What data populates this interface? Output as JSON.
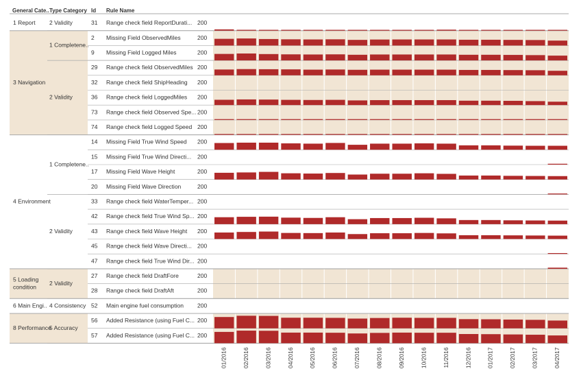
{
  "headers": {
    "general_category": "General Cate..",
    "type_category": "Type Category",
    "id": "Id",
    "rule_name": "Rule Name"
  },
  "colors": {
    "bar": "#b02a2a",
    "band": "#f1e5d4",
    "grid": "#ffffff",
    "divider": "#a8a8a8",
    "text": "#333333"
  },
  "chart_data": {
    "type": "bar",
    "title": "",
    "categories": [
      "01/2016",
      "02/2016",
      "03/2016",
      "04/2016",
      "05/2016",
      "06/2016",
      "07/2016",
      "08/2016",
      "09/2016",
      "10/2016",
      "11/2016",
      "12/2016",
      "01/2017",
      "02/2017",
      "03/2017",
      "04/2017"
    ],
    "ylim": [
      0,
      200
    ],
    "ylabel_per_row": "200",
    "groups": [
      {
        "general": "1 Report",
        "types": [
          {
            "type": "2 Validity",
            "rules": [
              {
                "id": "31",
                "name": "Range check field ReportDurati...",
                "values": [
                  18,
                  12,
                  10,
                  12,
                  10,
                  10,
                  8,
                  8,
                  10,
                  10,
                  14,
                  10,
                  10,
                  8,
                  10,
                  8
                ]
              }
            ]
          }
        ]
      },
      {
        "general": "3 Navigation",
        "types": [
          {
            "type": "1 Completene..",
            "rules": [
              {
                "id": "2",
                "name": "Missing Field ObservedMiles",
                "values": [
                  95,
                  100,
                  92,
                  88,
                  86,
                  88,
                  80,
                  85,
                  86,
                  86,
                  86,
                  82,
                  82,
                  80,
                  78,
                  70
                ]
              },
              {
                "id": "9",
                "name": "Missing Field Logged Miles",
                "values": [
                  92,
                  98,
                  90,
                  86,
                  84,
                  86,
                  80,
                  84,
                  84,
                  84,
                  84,
                  80,
                  80,
                  78,
                  75,
                  68
                ]
              }
            ]
          },
          {
            "type": "2 Validity",
            "rules": [
              {
                "id": "29",
                "name": "Range check field ObservedMiles",
                "values": [
                  82,
                  88,
                  86,
                  84,
                  80,
                  82,
                  78,
                  80,
                  80,
                  80,
                  80,
                  76,
                  76,
                  74,
                  72,
                  64
                ]
              },
              {
                "id": "32",
                "name": "Range check field ShipHeading",
                "values": [
                  0,
                  0,
                  0,
                  0,
                  0,
                  0,
                  0,
                  0,
                  0,
                  0,
                  0,
                  0,
                  0,
                  0,
                  0,
                  0
                ]
              },
              {
                "id": "36",
                "name": "Range check field LoggedMiles",
                "values": [
                  75,
                  80,
                  78,
                  74,
                  72,
                  74,
                  66,
                  70,
                  70,
                  70,
                  70,
                  62,
                  62,
                  60,
                  56,
                  48
                ]
              },
              {
                "id": "73",
                "name": "Range check field Observed Spe...",
                "values": [
                  4,
                  3,
                  3,
                  3,
                  3,
                  3,
                  3,
                  3,
                  3,
                  3,
                  3,
                  3,
                  3,
                  3,
                  3,
                  3
                ]
              },
              {
                "id": "74",
                "name": "Range check field Logged Speed",
                "values": [
                  4,
                  3,
                  3,
                  3,
                  3,
                  3,
                  10,
                  3,
                  3,
                  3,
                  3,
                  3,
                  3,
                  3,
                  3,
                  3
                ]
              }
            ]
          }
        ]
      },
      {
        "general": "4 Environment",
        "types": [
          {
            "type": "1 Completene..",
            "rules": [
              {
                "id": "14",
                "name": "Missing Field True Wind Speed",
                "values": [
                  95,
                  100,
                  100,
                  90,
                  86,
                  96,
                  70,
                  86,
                  86,
                  90,
                  86,
                  62,
                  62,
                  58,
                  56,
                  56
                ]
              },
              {
                "id": "15",
                "name": "Missing Field True Wind Directi...",
                "values": [
                  0,
                  0,
                  0,
                  0,
                  0,
                  0,
                  0,
                  0,
                  0,
                  0,
                  0,
                  0,
                  0,
                  0,
                  0,
                  12
                ]
              },
              {
                "id": "17",
                "name": "Missing Field Wave Height",
                "values": [
                  95,
                  100,
                  108,
                  88,
                  84,
                  92,
                  70,
                  82,
                  82,
                  88,
                  80,
                  56,
                  56,
                  52,
                  50,
                  48
                ]
              },
              {
                "id": "20",
                "name": "Missing Field Wave Direction",
                "values": [
                  0,
                  0,
                  0,
                  0,
                  0,
                  0,
                  0,
                  0,
                  0,
                  0,
                  0,
                  0,
                  0,
                  0,
                  0,
                  12
                ]
              }
            ]
          },
          {
            "type": "2 Validity",
            "rules": [
              {
                "id": "33",
                "name": "Range check field WaterTemper...",
                "values": [
                  0,
                  0,
                  0,
                  0,
                  0,
                  0,
                  0,
                  0,
                  0,
                  0,
                  0,
                  0,
                  0,
                  0,
                  0,
                  0
                ]
              },
              {
                "id": "42",
                "name": "Range check field True Wind Sp...",
                "values": [
                  98,
                  104,
                  106,
                  92,
                  88,
                  98,
                  70,
                  86,
                  86,
                  90,
                  82,
                  58,
                  58,
                  54,
                  52,
                  50
                ]
              },
              {
                "id": "43",
                "name": "Range check field Wave Height",
                "values": [
                  92,
                  100,
                  106,
                  86,
                  84,
                  92,
                  70,
                  82,
                  82,
                  86,
                  80,
                  54,
                  54,
                  52,
                  50,
                  48
                ]
              },
              {
                "id": "45",
                "name": "Range check field Wave Directi...",
                "values": [
                  0,
                  0,
                  0,
                  0,
                  0,
                  0,
                  0,
                  0,
                  0,
                  0,
                  0,
                  0,
                  0,
                  0,
                  0,
                  10
                ]
              },
              {
                "id": "47",
                "name": "Range check field True Wind Dir...",
                "values": [
                  0,
                  0,
                  0,
                  0,
                  0,
                  0,
                  0,
                  0,
                  0,
                  0,
                  0,
                  0,
                  0,
                  0,
                  0,
                  16
                ]
              }
            ]
          }
        ]
      },
      {
        "general": "5 Loading condition",
        "types": [
          {
            "type": "2 Validity",
            "rules": [
              {
                "id": "27",
                "name": "Range check field DraftFore",
                "values": [
                  0,
                  0,
                  0,
                  0,
                  0,
                  0,
                  0,
                  0,
                  0,
                  0,
                  0,
                  0,
                  0,
                  0,
                  0,
                  0
                ]
              },
              {
                "id": "28",
                "name": "Range check field DraftAft",
                "values": [
                  0,
                  0,
                  0,
                  0,
                  0,
                  0,
                  0,
                  0,
                  0,
                  0,
                  0,
                  0,
                  0,
                  0,
                  0,
                  0
                ]
              }
            ]
          }
        ]
      },
      {
        "general": "6 Main Engi..",
        "types": [
          {
            "type": "4 Consistency",
            "rules": [
              {
                "id": "52",
                "name": "Main engine fuel consumption",
                "values": [
                  0,
                  0,
                  0,
                  0,
                  0,
                  0,
                  0,
                  0,
                  0,
                  0,
                  0,
                  0,
                  0,
                  0,
                  0,
                  0
                ]
              }
            ]
          }
        ]
      },
      {
        "general": "8 Performance",
        "types": [
          {
            "type": "5 Accuracy",
            "rules": [
              {
                "id": "56",
                "name": "Added Resistance (using Fuel C...",
                "values": [
                  160,
                  178,
                  176,
                  150,
                  150,
                  148,
                  138,
                  146,
                  150,
                  148,
                  148,
                  130,
                  128,
                  124,
                  120,
                  110
                ]
              },
              {
                "id": "57",
                "name": "Added Resistance (using Fuel C...",
                "values": [
                  160,
                  178,
                  176,
                  150,
                  150,
                  148,
                  138,
                  146,
                  150,
                  148,
                  148,
                  130,
                  128,
                  124,
                  120,
                  110
                ]
              }
            ]
          }
        ]
      }
    ]
  }
}
